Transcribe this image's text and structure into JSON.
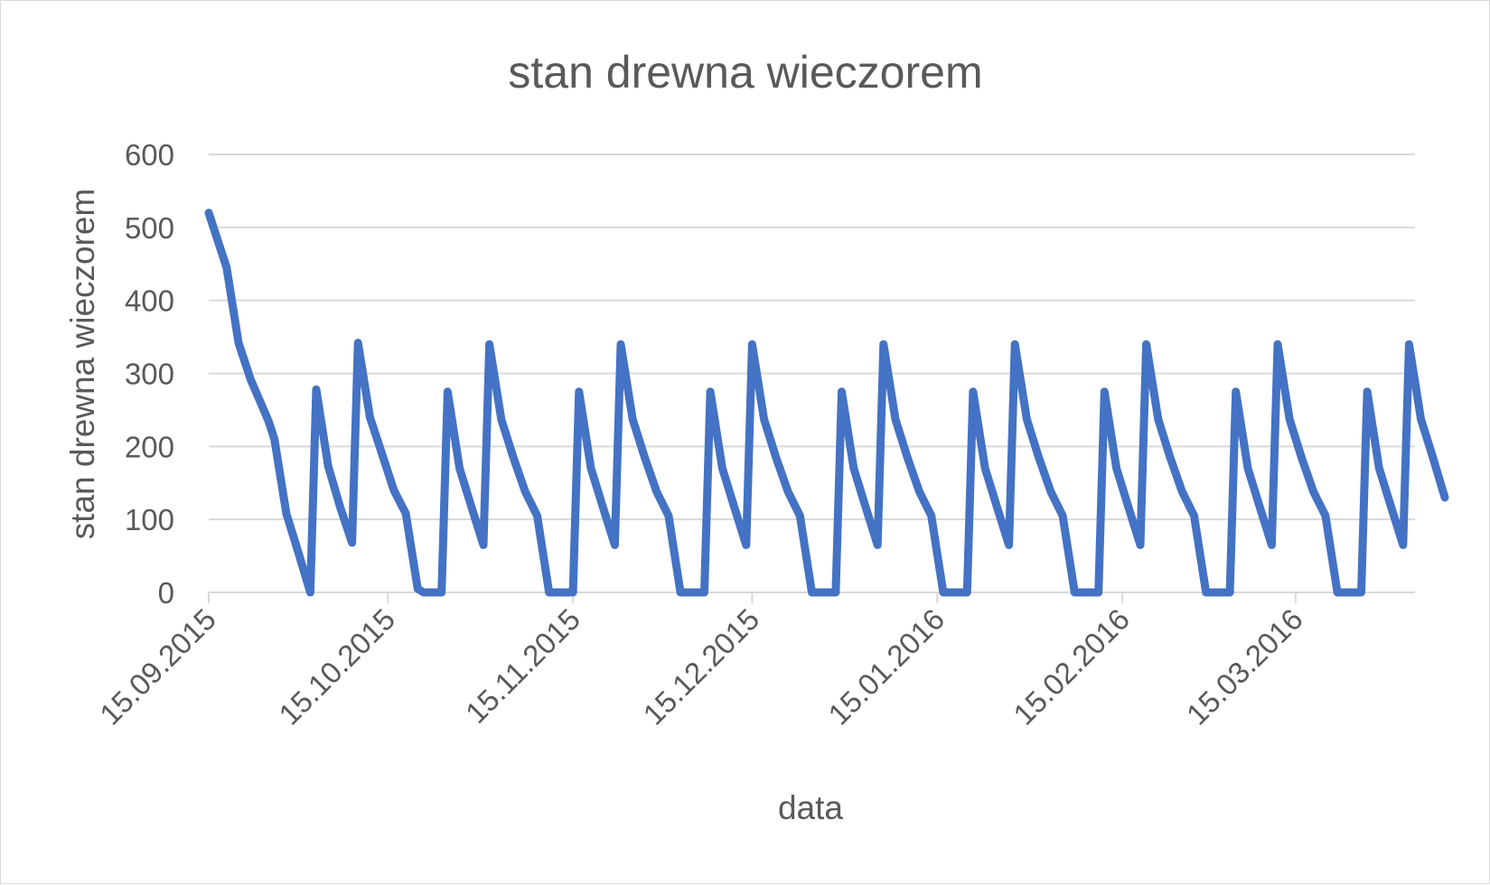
{
  "chart_data": {
    "type": "line",
    "title": "stan drewna wieczorem",
    "xlabel": "data",
    "ylabel": "stan drewna wieczorem",
    "ylim": [
      0,
      600
    ],
    "y_ticks": [
      "0",
      "100",
      "200",
      "300",
      "400",
      "500",
      "600"
    ],
    "x_ticks": [
      "15.09.2015",
      "15.10.2015",
      "15.11.2015",
      "15.12.2015",
      "15.01.2016",
      "15.02.2016",
      "15.03.2016"
    ],
    "x_range": [
      "2015-09-15",
      "2016-04-04"
    ],
    "grid": true,
    "legend": "none",
    "series": [
      {
        "color": "#4472C4",
        "points": [
          [
            "2015-09-15",
            520
          ],
          [
            "2015-09-18",
            445
          ],
          [
            "2015-09-20",
            342
          ],
          [
            "2015-09-22",
            292
          ],
          [
            "2015-09-25",
            235
          ],
          [
            "2015-09-26",
            210
          ],
          [
            "2015-09-28",
            108
          ],
          [
            "2015-09-30",
            55
          ],
          [
            "2015-10-02",
            0
          ],
          [
            "2015-10-03",
            278
          ],
          [
            "2015-10-05",
            173
          ],
          [
            "2015-10-07",
            117
          ],
          [
            "2015-10-09",
            68
          ],
          [
            "2015-10-10",
            342
          ],
          [
            "2015-10-12",
            240
          ],
          [
            "2015-10-14",
            190
          ],
          [
            "2015-10-16",
            140
          ],
          [
            "2015-10-18",
            108
          ],
          [
            "2015-10-20",
            5
          ],
          [
            "2015-10-21",
            0
          ],
          [
            "2015-10-24",
            0
          ],
          [
            "2015-10-25",
            275
          ],
          [
            "2015-10-27",
            170
          ],
          [
            "2015-10-29",
            117
          ],
          [
            "2015-10-31",
            65
          ],
          [
            "2015-11-01",
            340
          ],
          [
            "2015-11-03",
            237
          ],
          [
            "2015-11-05",
            185
          ],
          [
            "2015-11-07",
            138
          ],
          [
            "2015-11-09",
            105
          ],
          [
            "2015-11-11",
            0
          ],
          [
            "2015-11-15",
            0
          ],
          [
            "2015-11-16",
            275
          ],
          [
            "2015-11-18",
            170
          ],
          [
            "2015-11-20",
            117
          ],
          [
            "2015-11-22",
            65
          ],
          [
            "2015-11-23",
            340
          ],
          [
            "2015-11-25",
            237
          ],
          [
            "2015-11-27",
            185
          ],
          [
            "2015-11-29",
            138
          ],
          [
            "2015-12-01",
            105
          ],
          [
            "2015-12-03",
            0
          ],
          [
            "2015-12-07",
            0
          ],
          [
            "2015-12-08",
            275
          ],
          [
            "2015-12-10",
            170
          ],
          [
            "2015-12-12",
            117
          ],
          [
            "2015-12-14",
            65
          ],
          [
            "2015-12-15",
            340
          ],
          [
            "2015-12-17",
            237
          ],
          [
            "2015-12-19",
            185
          ],
          [
            "2015-12-21",
            138
          ],
          [
            "2015-12-23",
            105
          ],
          [
            "2015-12-25",
            0
          ],
          [
            "2015-12-29",
            0
          ],
          [
            "2015-12-30",
            275
          ],
          [
            "2016-01-01",
            170
          ],
          [
            "2016-01-03",
            117
          ],
          [
            "2016-01-05",
            65
          ],
          [
            "2016-01-06",
            340
          ],
          [
            "2016-01-08",
            237
          ],
          [
            "2016-01-10",
            185
          ],
          [
            "2016-01-12",
            138
          ],
          [
            "2016-01-14",
            105
          ],
          [
            "2016-01-16",
            0
          ],
          [
            "2016-01-20",
            0
          ],
          [
            "2016-01-21",
            275
          ],
          [
            "2016-01-23",
            170
          ],
          [
            "2016-01-25",
            117
          ],
          [
            "2016-01-27",
            65
          ],
          [
            "2016-01-28",
            340
          ],
          [
            "2016-01-30",
            237
          ],
          [
            "2016-02-01",
            185
          ],
          [
            "2016-02-03",
            138
          ],
          [
            "2016-02-05",
            105
          ],
          [
            "2016-02-07",
            0
          ],
          [
            "2016-02-11",
            0
          ],
          [
            "2016-02-12",
            275
          ],
          [
            "2016-02-14",
            170
          ],
          [
            "2016-02-16",
            117
          ],
          [
            "2016-02-18",
            65
          ],
          [
            "2016-02-19",
            340
          ],
          [
            "2016-02-21",
            237
          ],
          [
            "2016-02-23",
            185
          ],
          [
            "2016-02-25",
            138
          ],
          [
            "2016-02-27",
            105
          ],
          [
            "2016-02-29",
            0
          ],
          [
            "2016-03-04",
            0
          ],
          [
            "2016-03-05",
            275
          ],
          [
            "2016-03-07",
            170
          ],
          [
            "2016-03-09",
            117
          ],
          [
            "2016-03-11",
            65
          ],
          [
            "2016-03-12",
            340
          ],
          [
            "2016-03-14",
            237
          ],
          [
            "2016-03-16",
            185
          ],
          [
            "2016-03-18",
            138
          ],
          [
            "2016-03-20",
            105
          ],
          [
            "2016-03-22",
            0
          ],
          [
            "2016-03-26",
            0
          ],
          [
            "2016-03-27",
            275
          ],
          [
            "2016-03-29",
            170
          ],
          [
            "2016-03-31",
            117
          ],
          [
            "2016-04-02",
            65
          ],
          [
            "2016-04-03",
            340
          ],
          [
            "2016-04-05",
            237
          ],
          [
            "2016-04-07",
            185
          ],
          [
            "2016-04-09",
            130
          ]
        ]
      }
    ]
  }
}
